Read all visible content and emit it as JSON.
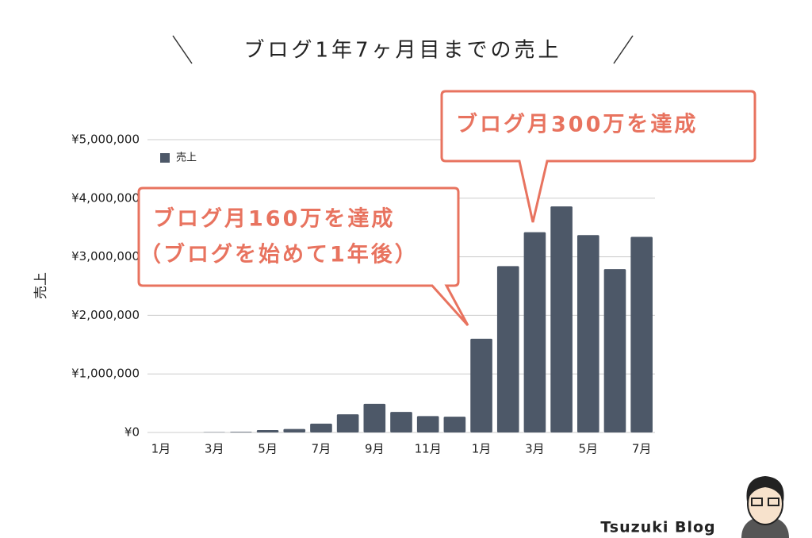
{
  "chart_data": {
    "type": "bar",
    "title": "ブログ1年7ヶ月目までの売上",
    "y_label": "売上",
    "categories": [
      "1月",
      null,
      "3月",
      null,
      "5月",
      null,
      "7月",
      null,
      "9月",
      null,
      "11月",
      null,
      "1月",
      null,
      "3月",
      null,
      "5月",
      null,
      "7月"
    ],
    "series": [
      {
        "name": "売上",
        "color": "#4d5868",
        "values": [
          0,
          0,
          5000,
          10000,
          40000,
          60000,
          150000,
          310000,
          490000,
          350000,
          280000,
          270000,
          1600000,
          2840000,
          3420000,
          3860000,
          3370000,
          2790000,
          3340000
        ]
      }
    ],
    "ylim": [
      0,
      5000000
    ],
    "yticks": [
      {
        "value": 0,
        "label": "¥0"
      },
      {
        "value": 1000000,
        "label": "¥1,000,000"
      },
      {
        "value": 2000000,
        "label": "¥2,000,000"
      },
      {
        "value": 3000000,
        "label": "¥3,000,000"
      },
      {
        "value": 4000000,
        "label": "¥4,000,000"
      },
      {
        "value": 5000000,
        "label": "¥5,000,000"
      }
    ],
    "grid": true,
    "legend": "top-left",
    "annotations": [
      "ブログ月300万を達成",
      "ブログ月160万を達成",
      "（ブログを始めて1年後）"
    ],
    "brand": "Tsuzuki Blog"
  }
}
